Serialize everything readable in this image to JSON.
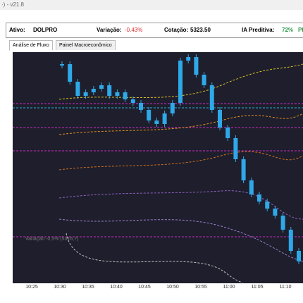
{
  "window": {
    "title": "·) - v21.8"
  },
  "header": {
    "asset_label": "Ativo:",
    "asset": "DOLPRO",
    "change_label": "Variação:",
    "change": "-0.43%",
    "quote_label": "Cotação:",
    "quote": "5323.50",
    "ai_label": "IA Preditiva:",
    "ai": "72%",
    "extra": "PF"
  },
  "tabs": [
    "Análise de Fluxo",
    "Painel Macroeconômico"
  ],
  "chart_data": {
    "type": "candles",
    "color": "#2fa8e8",
    "annotation": "Variação -0,5% (5316,7)",
    "time_labels": [
      "10:25",
      "10:30",
      "10:35",
      "10:40",
      "10:45",
      "10:50",
      "10:55",
      "11:00",
      "11:05",
      "11:10"
    ],
    "values": [
      5343.5,
      5341,
      5339,
      5339.5,
      5340,
      5340.5,
      5339,
      5339.5,
      5338.5,
      5338,
      5337,
      5335.5,
      5335,
      5336.5,
      5338,
      5344,
      5344.5,
      5342,
      5340.5,
      5337,
      5334.5,
      5333,
      5330,
      5327,
      5325,
      5324,
      5323,
      5322,
      5320,
      5317,
      5315.5
    ]
  }
}
